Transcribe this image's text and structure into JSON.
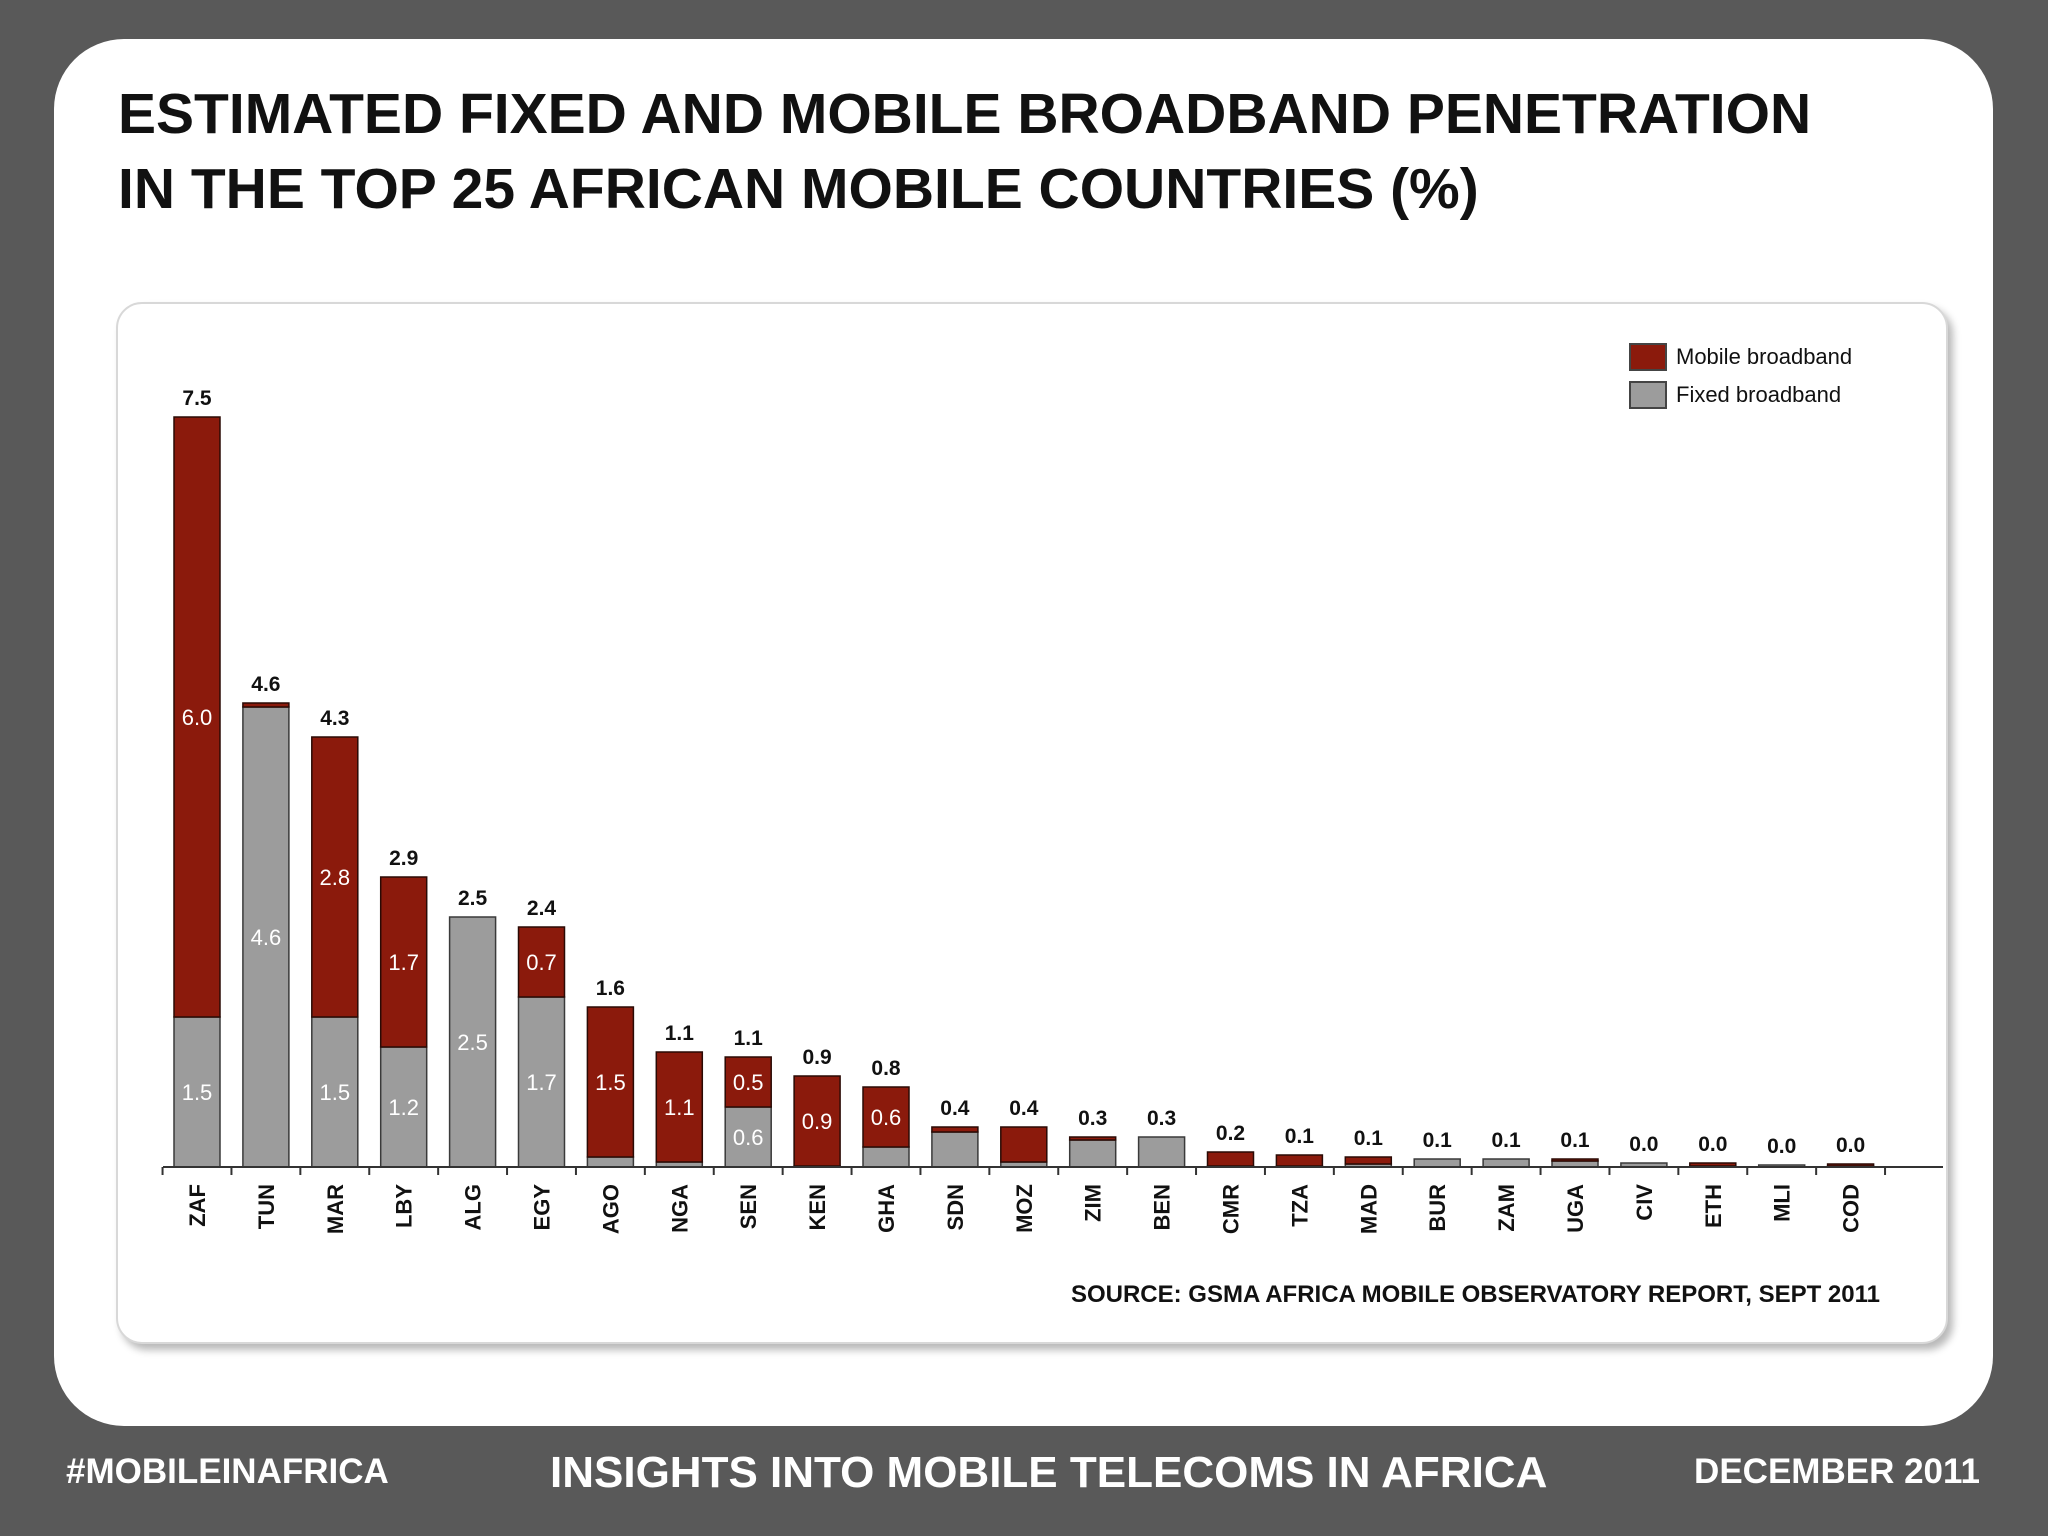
{
  "slide": {
    "title_line1": "ESTIMATED FIXED AND MOBILE BROADBAND PENETRATION",
    "title_line2": "IN THE TOP 25 AFRICAN MOBILE COUNTRIES (%)",
    "source": "SOURCE: GSMA AFRICA MOBILE OBSERVATORY REPORT, SEPT 2011"
  },
  "footer": {
    "hashtag": "#MOBILEINAFRICA",
    "tagline": "INSIGHTS INTO MOBILE TELECOMS IN AFRICA",
    "date": "DECEMBER 2011"
  },
  "colors": {
    "mobile": "#8b1a0c",
    "fixed": "#9c9c9c",
    "background": "#595959"
  },
  "chart_data": {
    "type": "bar",
    "stacked": true,
    "categories": [
      "ZAF",
      "TUN",
      "MAR",
      "LBY",
      "ALG",
      "EGY",
      "AGO",
      "NGA",
      "SEN",
      "KEN",
      "GHA",
      "SDN",
      "MOZ",
      "ZIM",
      "BEN",
      "CMR",
      "TZA",
      "MAD",
      "BUR",
      "ZAM",
      "UGA",
      "CIV",
      "ETH",
      "MLI",
      "COD"
    ],
    "series": [
      {
        "name": "Fixed broadband",
        "color": "#9c9c9c",
        "values": [
          1.5,
          4.6,
          1.5,
          1.2,
          2.5,
          1.7,
          0.1,
          0.05,
          0.6,
          0.01,
          0.2,
          0.35,
          0.05,
          0.27,
          0.3,
          0.01,
          0.01,
          0.03,
          0.08,
          0.08,
          0.06,
          0.04,
          0.01,
          0.02,
          0.01
        ],
        "labels": [
          "1.5",
          "4.6",
          "1.5",
          "1.2",
          "2.5",
          "1.7",
          "",
          "",
          "0.6",
          "",
          "",
          "",
          "",
          "",
          "",
          "",
          "",
          "",
          "",
          "",
          "",
          "",
          "",
          "",
          ""
        ]
      },
      {
        "name": "Mobile broadband",
        "color": "#8b1a0c",
        "values": [
          6.0,
          0.04,
          2.8,
          1.7,
          0.0,
          0.7,
          1.5,
          1.1,
          0.5,
          0.9,
          0.6,
          0.05,
          0.35,
          0.03,
          0.0,
          0.14,
          0.11,
          0.07,
          0.0,
          0.0,
          0.02,
          0.0,
          0.03,
          0.0,
          0.02
        ],
        "labels": [
          "6.0",
          "",
          "2.8",
          "1.7",
          "",
          "0.7",
          "1.5",
          "1.1",
          "0.5",
          "0.9",
          "0.6",
          "",
          "",
          "",
          "",
          "",
          "",
          "",
          "",
          "",
          "",
          "",
          "",
          "",
          ""
        ]
      }
    ],
    "totals": [
      "7.5",
      "4.6",
      "4.3",
      "2.9",
      "2.5",
      "2.4",
      "1.6",
      "1.1",
      "1.1",
      "0.9",
      "0.8",
      "0.4",
      "0.4",
      "0.3",
      "0.3",
      "0.2",
      "0.1",
      "0.1",
      "0.1",
      "0.1",
      "0.1",
      "0.0",
      "0.0",
      "0.0",
      "0.0"
    ],
    "ylim": [
      0,
      7.5
    ],
    "legend_position": "top-right",
    "grid": false
  }
}
